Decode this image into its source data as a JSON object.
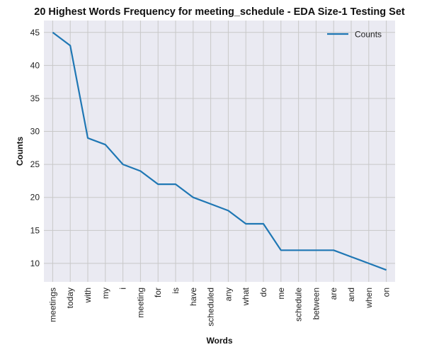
{
  "chart_data": {
    "type": "line",
    "title": "20 Highest Words Frequency for meeting_schedule - EDA Size-1 Testing Set",
    "xlabel": "Words",
    "ylabel": "Counts",
    "categories": [
      "meetings",
      "today",
      "with",
      "my",
      "i",
      "meeting",
      "for",
      "is",
      "have",
      "scheduled",
      "any",
      "what",
      "do",
      "me",
      "schedule",
      "between",
      "are",
      "and",
      "when",
      "on"
    ],
    "series": [
      {
        "name": "Counts",
        "values": [
          45,
          43,
          29,
          28,
          25,
          24,
          22,
          22,
          20,
          19,
          18,
          16,
          16,
          12,
          12,
          12,
          12,
          11,
          10,
          9
        ]
      }
    ],
    "ylim": [
      7.2,
      46.8
    ],
    "yticks": [
      10,
      15,
      20,
      25,
      30,
      35,
      40,
      45
    ],
    "grid": true,
    "legend_position": "top-right",
    "colors": {
      "line": "#1f77b4",
      "plot_bg": "#eaeaf2",
      "grid": "#c8c8c8"
    }
  }
}
